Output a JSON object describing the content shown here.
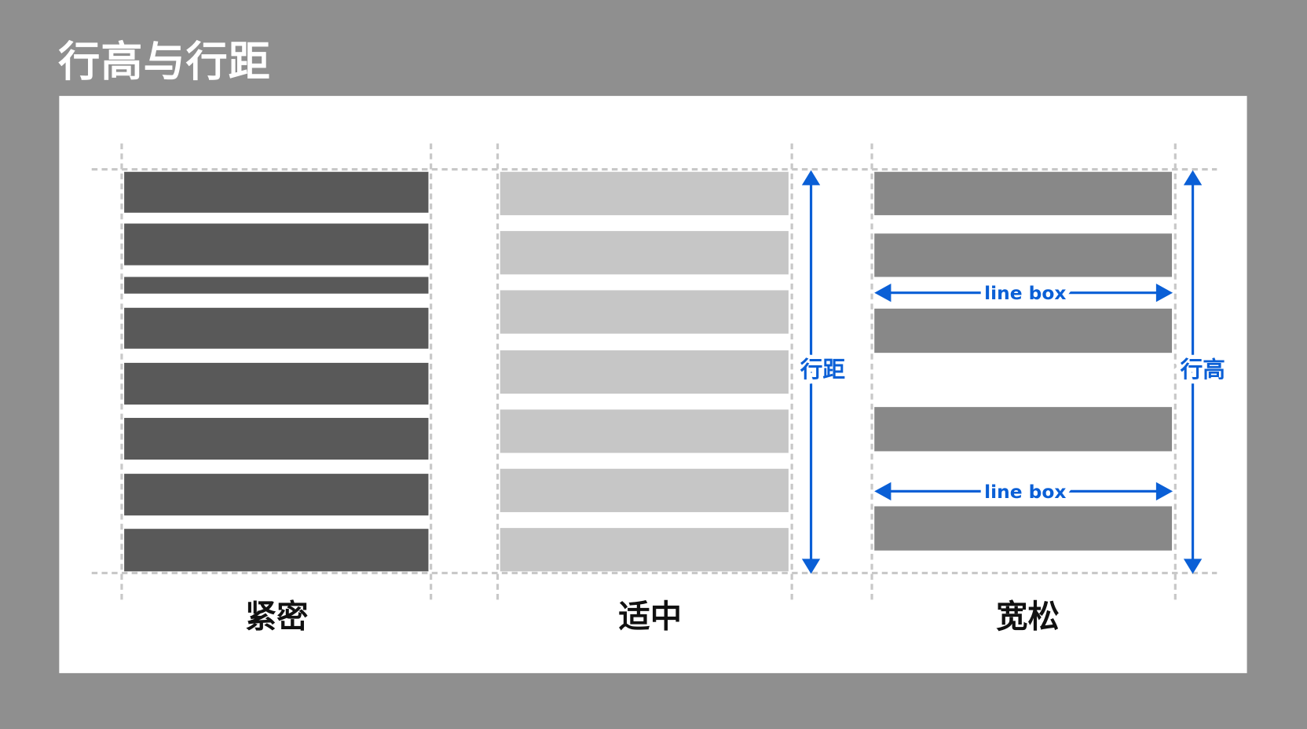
{
  "title": "行高与行距",
  "colors": {
    "background": "#8f8f8f",
    "panel": "#ffffff",
    "accent": "#0a5fd6",
    "dense_bar": "#595959",
    "medium_bar": "#c6c6c6",
    "loose_bar": "#888888",
    "guide": "#c8c8c8"
  },
  "columns": [
    {
      "label": "紧密",
      "bar_count": 8
    },
    {
      "label": "适中",
      "bar_count": 7
    },
    {
      "label": "宽松",
      "bar_count": 5
    }
  ],
  "annotations": {
    "line_spacing": "行距",
    "line_height": "行高",
    "line_box_1": "line box",
    "line_box_2": "line box"
  }
}
